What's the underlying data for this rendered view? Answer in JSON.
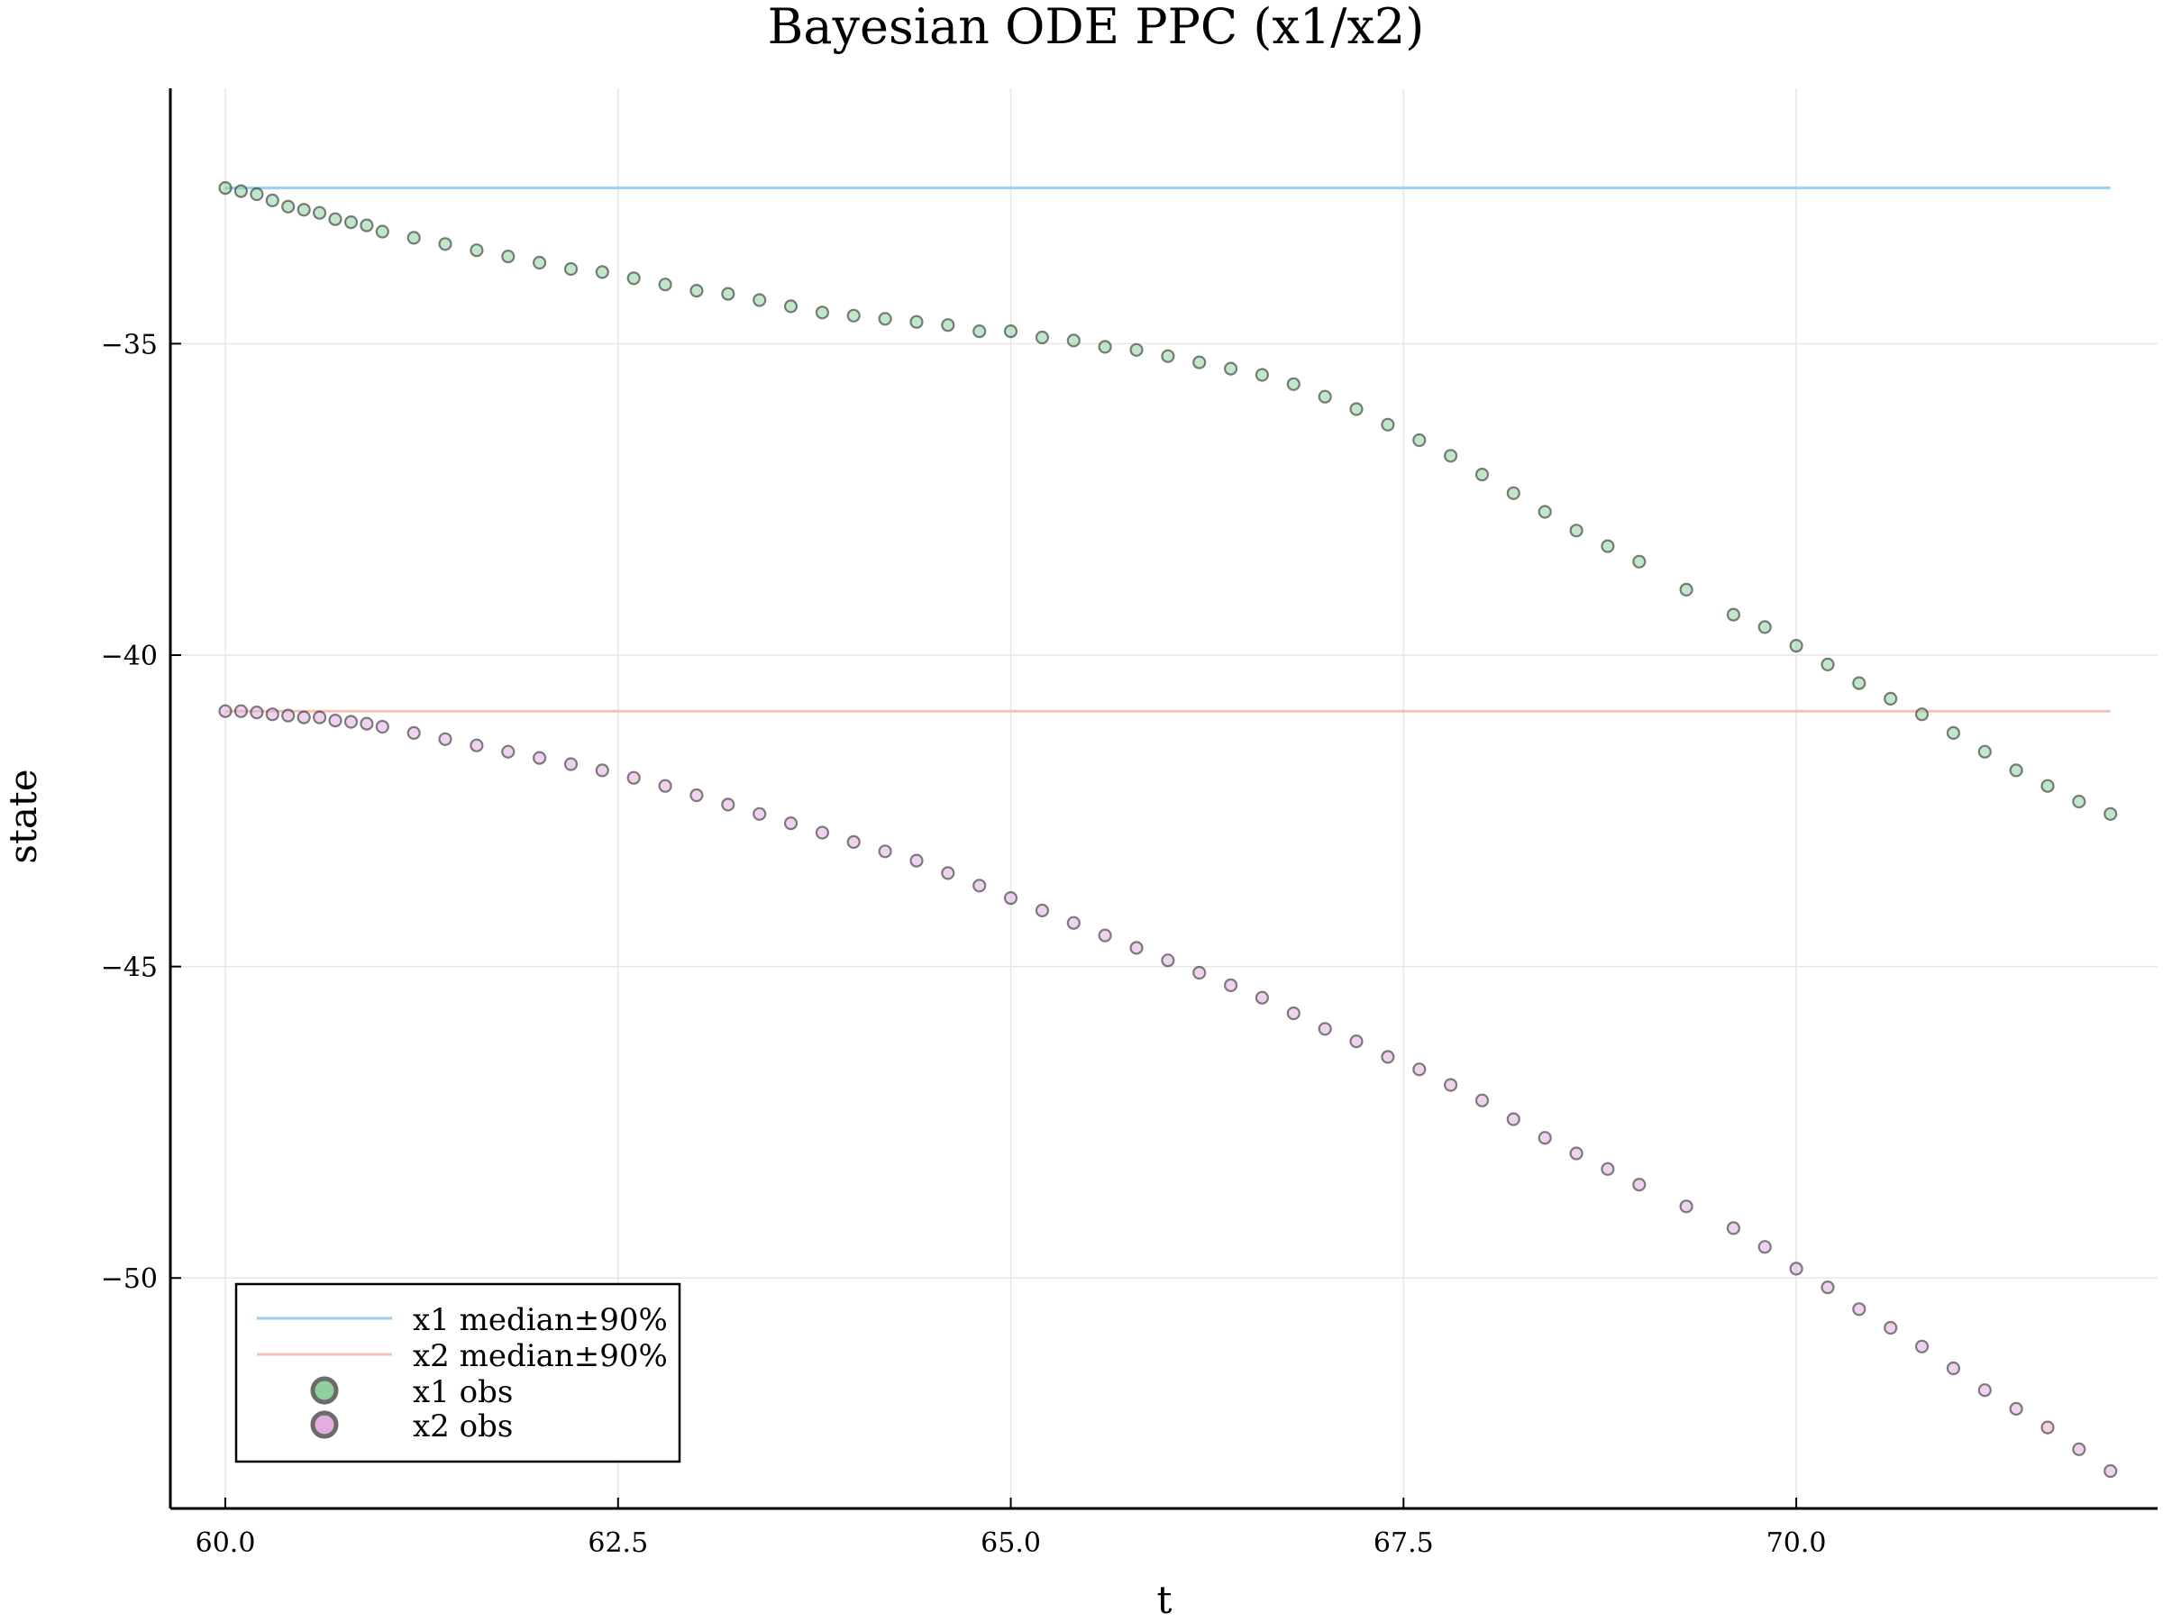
{
  "chart_data": {
    "type": "scatter",
    "title": "Bayesian ODE PPC (x1/x2)",
    "xlabel": "t",
    "ylabel": "state",
    "xlim": [
      59.65,
      72.3
    ],
    "ylim": [
      -53.7,
      -30.9
    ],
    "xticks": [
      60.0,
      62.5,
      65.0,
      67.5,
      70.0
    ],
    "xtick_labels": [
      "60.0",
      "62.5",
      "65.0",
      "67.5",
      "70.0"
    ],
    "yticks": [
      -35,
      -40,
      -45,
      -50
    ],
    "ytick_labels": [
      "−35",
      "−40",
      "−45",
      "−50"
    ],
    "grid": true,
    "legend_position": "bottom-left",
    "lines": [
      {
        "name": "x1 median±90%",
        "color": "#9ccff2",
        "x": [
          60.0,
          72.0
        ],
        "y": [
          -32.5,
          -32.5
        ]
      },
      {
        "name": "x2 median±90%",
        "color": "#f2c2b4",
        "x": [
          60.0,
          72.0
        ],
        "y": [
          -40.9,
          -40.9
        ]
      }
    ],
    "series": [
      {
        "name": "x1 obs",
        "color": "#8fd19e",
        "x": [
          60.0,
          60.1,
          60.2,
          60.3,
          60.4,
          60.5,
          60.6,
          60.7,
          60.8,
          60.9,
          61.0,
          61.2,
          61.4,
          61.6,
          61.8,
          62.0,
          62.2,
          62.4,
          62.6,
          62.8,
          63.0,
          63.2,
          63.4,
          63.6,
          63.8,
          64.0,
          64.2,
          64.4,
          64.6,
          64.8,
          65.0,
          65.2,
          65.4,
          65.6,
          65.8,
          66.0,
          66.2,
          66.4,
          66.6,
          66.8,
          67.0,
          67.2,
          67.4,
          67.6,
          67.8,
          68.0,
          68.2,
          68.4,
          68.6,
          68.8,
          69.0,
          69.3,
          69.6,
          69.8,
          70.0,
          70.2,
          70.4,
          70.6,
          70.8,
          71.0,
          71.2,
          71.4,
          71.6,
          71.8,
          72.0
        ],
        "y": [
          -32.5,
          -32.55,
          -32.6,
          -32.7,
          -32.8,
          -32.85,
          -32.9,
          -33.0,
          -33.05,
          -33.1,
          -33.2,
          -33.3,
          -33.4,
          -33.5,
          -33.6,
          -33.7,
          -33.8,
          -33.85,
          -33.95,
          -34.05,
          -34.15,
          -34.2,
          -34.3,
          -34.4,
          -34.5,
          -34.55,
          -34.6,
          -34.65,
          -34.7,
          -34.8,
          -34.8,
          -34.9,
          -34.95,
          -35.05,
          -35.1,
          -35.2,
          -35.3,
          -35.4,
          -35.5,
          -35.65,
          -35.85,
          -36.05,
          -36.3,
          -36.55,
          -36.8,
          -37.1,
          -37.4,
          -37.7,
          -38.0,
          -38.25,
          -38.5,
          -38.95,
          -39.35,
          -39.55,
          -39.85,
          -40.15,
          -40.45,
          -40.7,
          -40.95,
          -41.25,
          -41.55,
          -41.85,
          -42.1,
          -42.35,
          -42.55
        ]
      },
      {
        "name": "x2 obs",
        "color": "#e2aee0",
        "x": [
          60.0,
          60.1,
          60.2,
          60.3,
          60.4,
          60.5,
          60.6,
          60.7,
          60.8,
          60.9,
          61.0,
          61.2,
          61.4,
          61.6,
          61.8,
          62.0,
          62.2,
          62.4,
          62.6,
          62.8,
          63.0,
          63.2,
          63.4,
          63.6,
          63.8,
          64.0,
          64.2,
          64.4,
          64.6,
          64.8,
          65.0,
          65.2,
          65.4,
          65.6,
          65.8,
          66.0,
          66.2,
          66.4,
          66.6,
          66.8,
          67.0,
          67.2,
          67.4,
          67.6,
          67.8,
          68.0,
          68.2,
          68.4,
          68.6,
          68.8,
          69.0,
          69.3,
          69.6,
          69.8,
          70.0,
          70.2,
          70.4,
          70.6,
          70.8,
          71.0,
          71.2,
          71.4,
          71.6,
          71.8,
          72.0
        ],
        "y": [
          -40.9,
          -40.9,
          -40.92,
          -40.95,
          -40.97,
          -41.0,
          -41.0,
          -41.05,
          -41.07,
          -41.1,
          -41.15,
          -41.25,
          -41.35,
          -41.45,
          -41.55,
          -41.65,
          -41.75,
          -41.85,
          -41.97,
          -42.1,
          -42.25,
          -42.4,
          -42.55,
          -42.7,
          -42.85,
          -43.0,
          -43.15,
          -43.3,
          -43.5,
          -43.7,
          -43.9,
          -44.1,
          -44.3,
          -44.5,
          -44.7,
          -44.9,
          -45.1,
          -45.3,
          -45.5,
          -45.75,
          -46.0,
          -46.2,
          -46.45,
          -46.65,
          -46.9,
          -47.15,
          -47.45,
          -47.75,
          -48.0,
          -48.25,
          -48.5,
          -48.85,
          -49.2,
          -49.5,
          -49.85,
          -50.15,
          -50.5,
          -50.8,
          -51.1,
          -51.45,
          -51.8,
          -52.1,
          -52.4,
          -52.75,
          -53.1
        ]
      }
    ]
  }
}
